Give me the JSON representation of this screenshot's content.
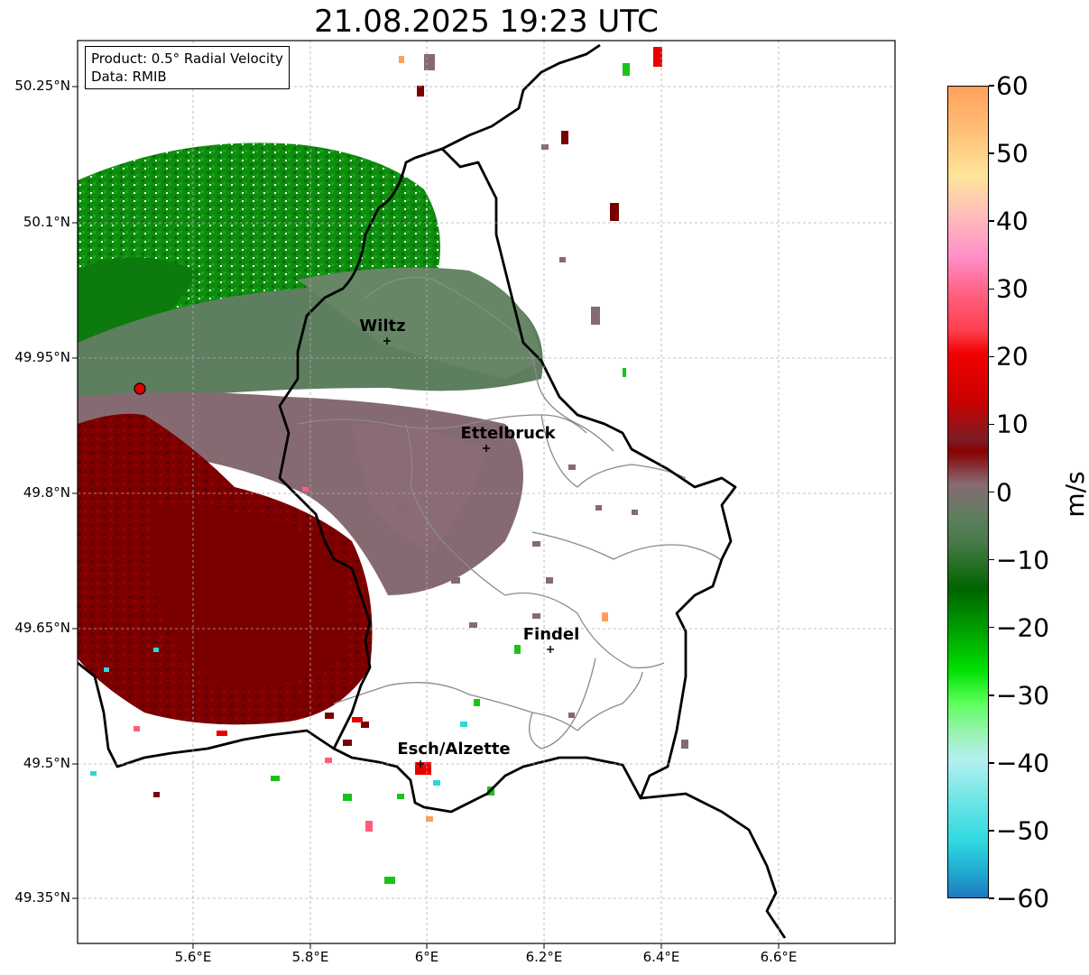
{
  "title": "21.08.2025 19:23 UTC",
  "info": {
    "product": "Product: 0.5° Radial Velocity",
    "data": "Data: RMIB"
  },
  "lat_ticks": [
    "50.25°N",
    "50.1°N",
    "49.95°N",
    "49.8°N",
    "49.65°N",
    "49.5°N",
    "49.35°N"
  ],
  "lon_ticks": [
    "5.6°E",
    "5.8°E",
    "6°E",
    "6.2°E",
    "6.4°E",
    "6.6°E"
  ],
  "cities": [
    {
      "name": "Wiltz"
    },
    {
      "name": "Ettelbruck"
    },
    {
      "name": "Findel"
    },
    {
      "name": "Esch/Alzette"
    }
  ],
  "colorbar": {
    "unit": "m/s",
    "ticks": [
      "60",
      "50",
      "40",
      "30",
      "20",
      "10",
      "0",
      "−10",
      "−20",
      "−30",
      "−40",
      "−50",
      "−60"
    ],
    "range": [
      -60,
      60
    ]
  },
  "colors": {
    "outward": "#7a0000",
    "inward": "#0a8a0a",
    "near_zero_pos": "#866a72",
    "near_zero_neg": "#5e7e60",
    "radar_site": "#e00000"
  }
}
